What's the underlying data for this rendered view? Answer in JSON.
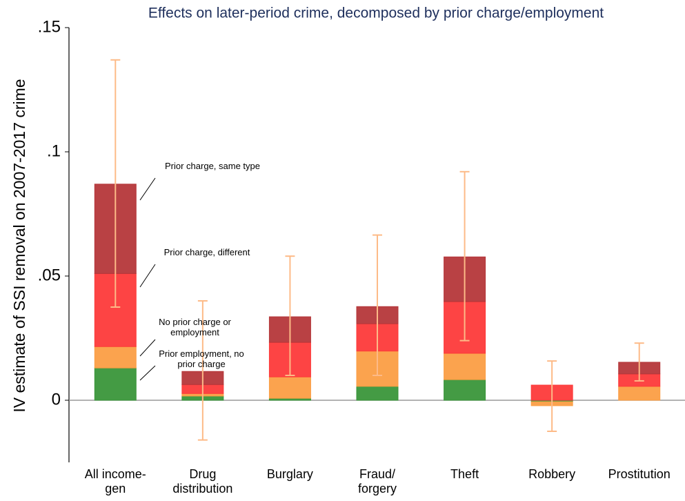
{
  "chart_data": {
    "type": "stacked_bar",
    "title": "Effects on later-period crime, decomposed by prior charge/employment",
    "y_label": "IV estimate of SSI removal on 2007-2017 crime",
    "categories": [
      "All income-gen",
      "Drug distribution",
      "Burglary",
      "Fraud/ forgery",
      "Theft",
      "Robbery",
      "Prostitution"
    ],
    "series": [
      {
        "name": "Prior employment, no prior charge",
        "color": "#3a963a",
        "values": [
          0.013,
          0.0017,
          0.0008,
          0.0056,
          0.0083,
          -0.0006,
          0
        ]
      },
      {
        "name": "No prior charge or employment",
        "color": "#fb9e44",
        "values": [
          0.0086,
          0.001,
          0.0086,
          0.0142,
          0.0106,
          -0.0016,
          0.0056
        ]
      },
      {
        "name": "Prior charge, different",
        "color": "#fd3a3a",
        "values": [
          0.0294,
          0.0036,
          0.0139,
          0.011,
          0.0208,
          0.0061,
          0.005
        ]
      },
      {
        "name": "Prior charge, same type",
        "color": "#b5373a",
        "values": [
          0.036,
          0.0053,
          0.0103,
          0.0069,
          0.018,
          0,
          0.0047
        ]
      }
    ],
    "ci_low": [
      0.0375,
      -0.016,
      0.01,
      0.01,
      0.024,
      -0.0125,
      0.0078
    ],
    "ci_high": [
      0.137,
      0.04,
      0.058,
      0.0665,
      0.092,
      0.0158,
      0.023
    ],
    "error_color": "#fdba87",
    "ylim": [
      -0.025,
      0.15
    ],
    "yticks": [
      {
        "value": 0,
        "label": "0"
      },
      {
        "value": 0.05,
        "label": ".05"
      },
      {
        "value": 0.1,
        "label": ".1"
      },
      {
        "value": 0.15,
        "label": ".15"
      }
    ]
  }
}
